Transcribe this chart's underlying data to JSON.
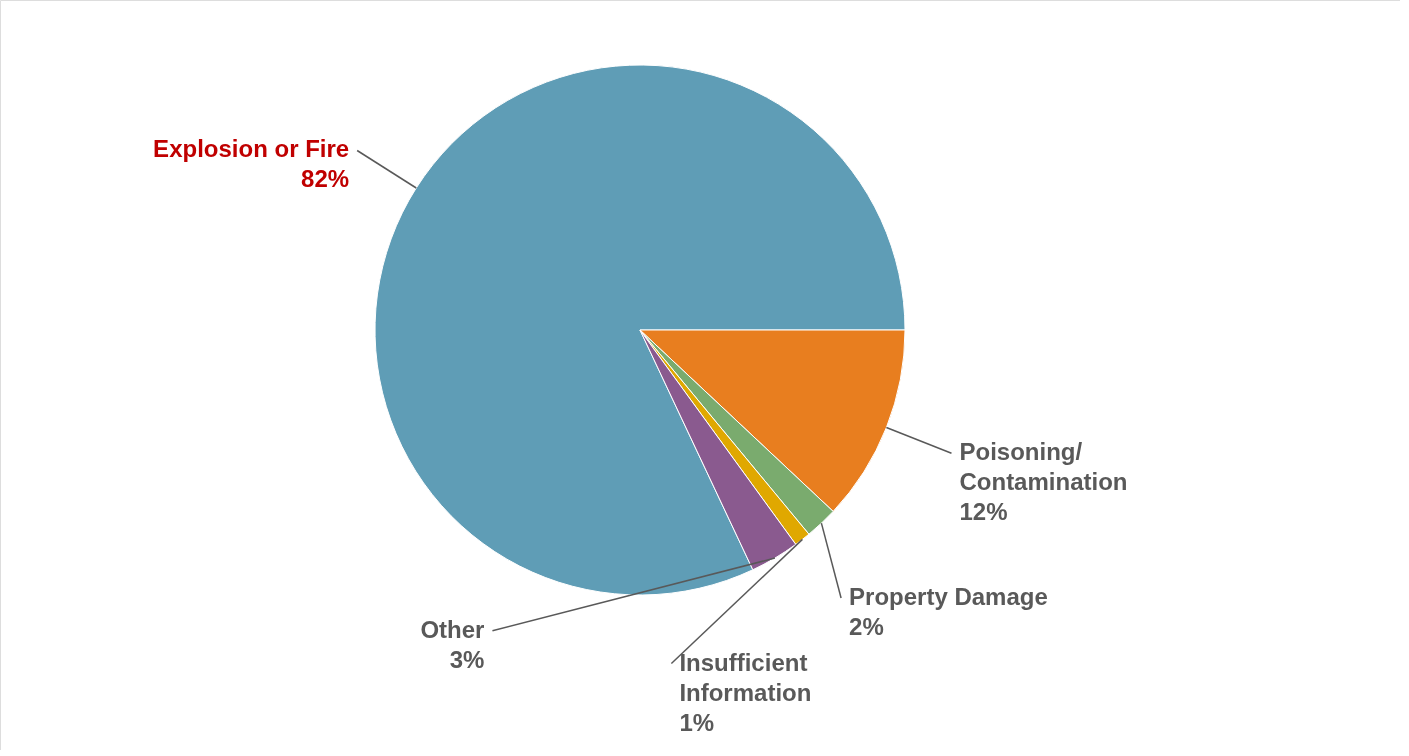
{
  "chart_data": {
    "type": "pie",
    "categories": [
      "Explosion or Fire",
      "Poisoning/Contamination",
      "Property Damage",
      "Insufficient Information",
      "Other"
    ],
    "values": [
      82,
      12,
      2,
      1,
      3
    ],
    "value_labels": [
      "82%",
      "12%",
      "2%",
      "1%",
      "3%"
    ],
    "colors": [
      "#5f9db6",
      "#e87e1f",
      "#7aab6e",
      "#e0a800",
      "#8a5a8f"
    ]
  }
}
